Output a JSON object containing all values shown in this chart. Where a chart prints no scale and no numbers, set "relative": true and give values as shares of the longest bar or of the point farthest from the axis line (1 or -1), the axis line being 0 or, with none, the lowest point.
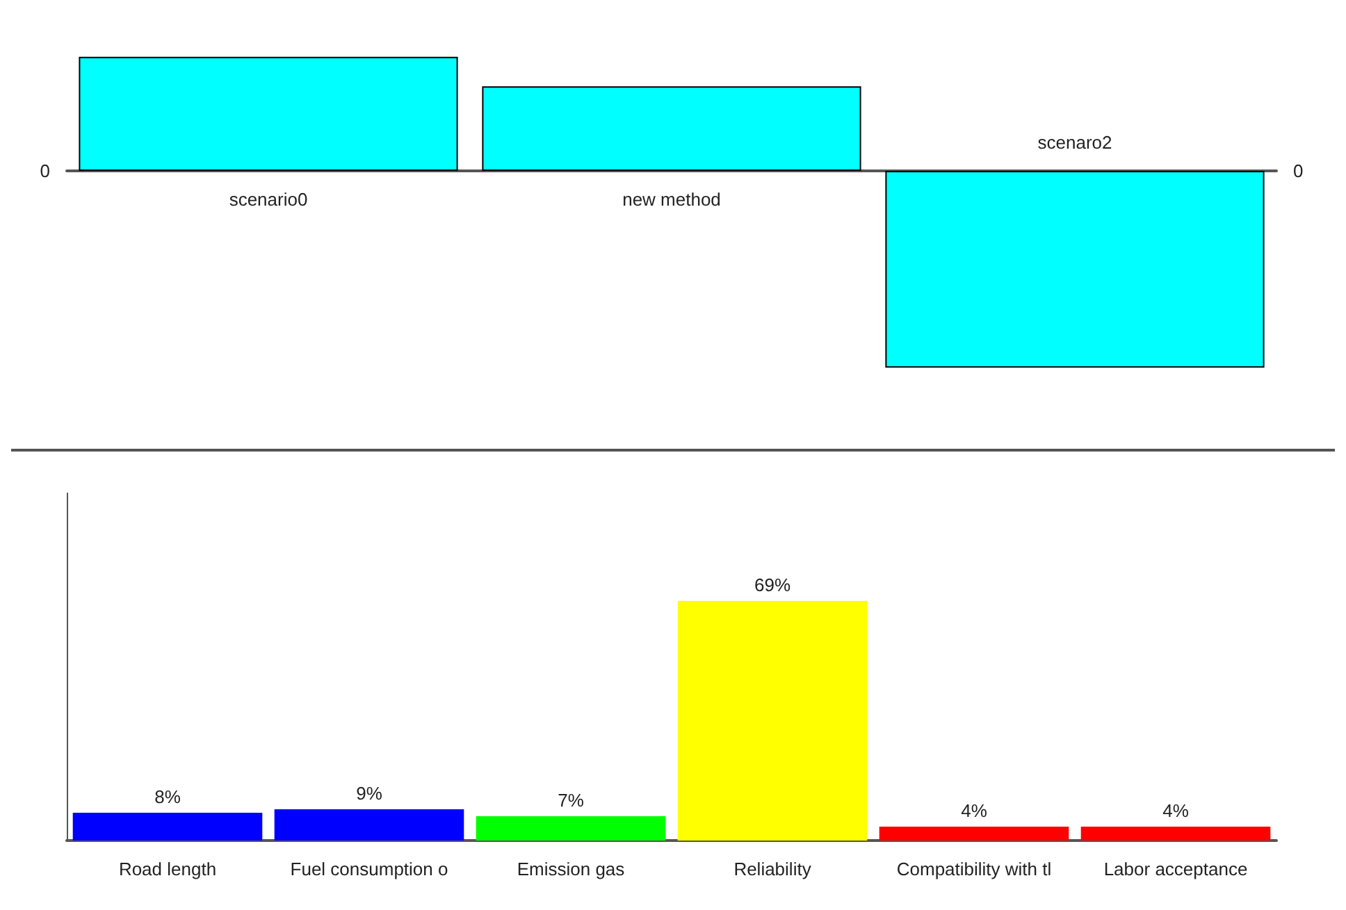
{
  "chart_data": [
    {
      "type": "bar",
      "relative": true,
      "categories": [
        "scenario0",
        "new method",
        "scenaro2"
      ],
      "values": [
        0.58,
        0.43,
        -1
      ],
      "color": "#00ffff",
      "annotations": [
        "0",
        "0"
      ]
    },
    {
      "type": "bar",
      "categories": [
        "Road length",
        "Fuel consumption o",
        "Emission gas",
        "Reliability",
        "Compatibility with tl",
        "Labor acceptance"
      ],
      "values": [
        8,
        9,
        7,
        69,
        4,
        4
      ],
      "colors": [
        "#0000ff",
        "#0000ff",
        "#00ff00",
        "#ffff00",
        "#ff0000",
        "#ff0000"
      ],
      "value_labels": [
        "8%",
        "9%",
        "7%",
        "69%",
        "4%",
        "4%"
      ],
      "ylim": [
        0,
        100
      ],
      "tick_labels": "x"
    }
  ]
}
